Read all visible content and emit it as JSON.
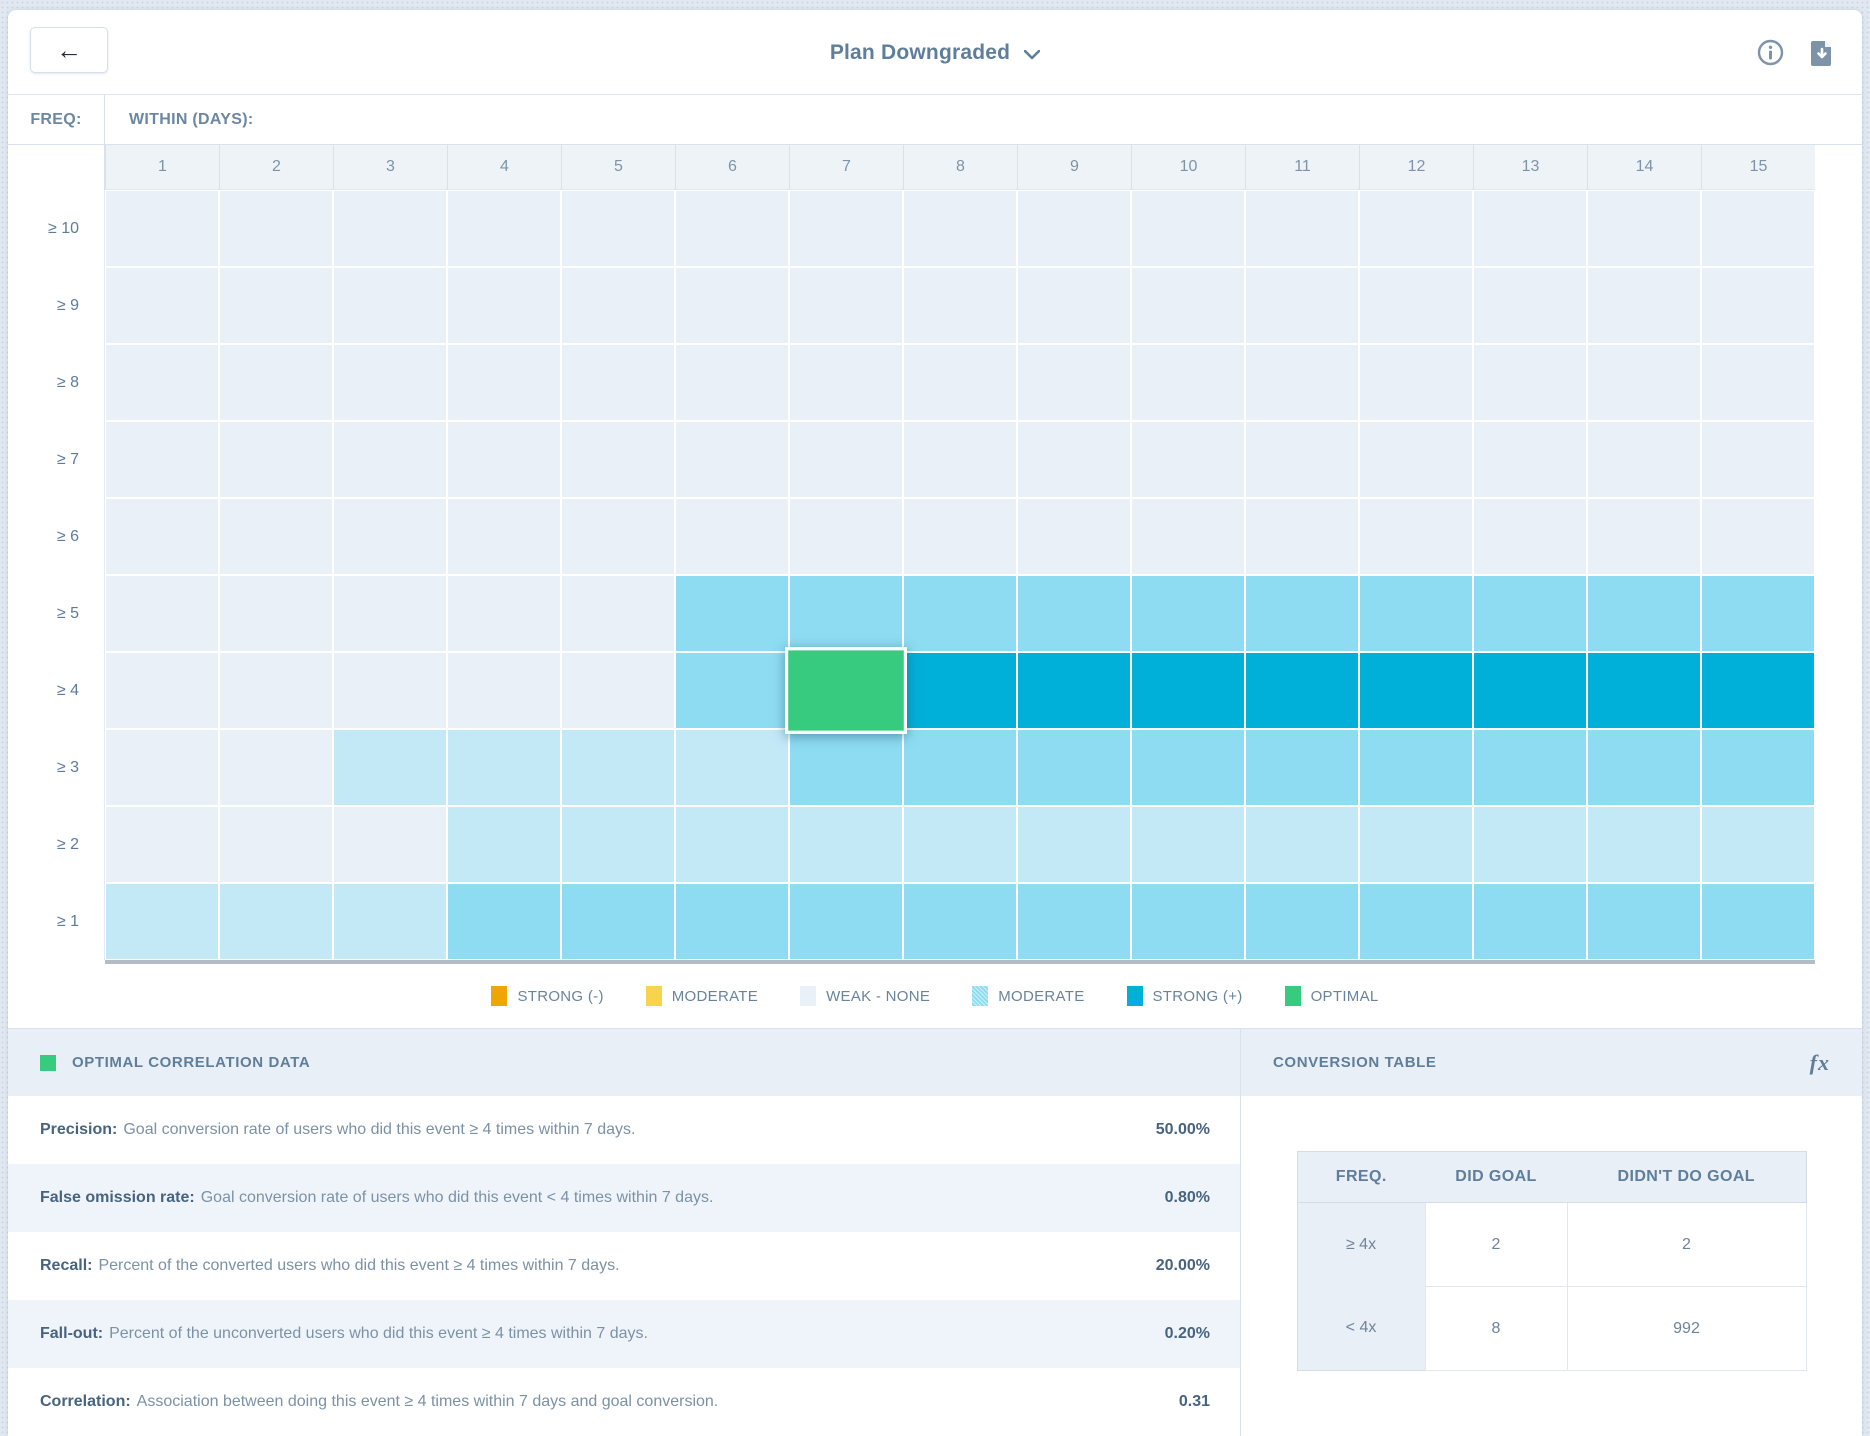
{
  "header": {
    "title": "Plan Downgraded",
    "back_label": "←"
  },
  "chart_data": {
    "type": "heatmap",
    "y_axis_label": "FREQ:",
    "x_axis_label": "WITHIN (DAYS):",
    "columns": [
      "1",
      "2",
      "3",
      "4",
      "5",
      "6",
      "7",
      "8",
      "9",
      "10",
      "11",
      "12",
      "13",
      "14",
      "15"
    ],
    "rows": [
      "≥ 10",
      "≥ 9",
      "≥ 8",
      "≥ 7",
      "≥ 6",
      "≥ 5",
      "≥ 4",
      "≥ 3",
      "≥ 2",
      "≥ 1"
    ],
    "palette": {
      "weak": "#e9f0f7",
      "light": "#c3e9f7",
      "moderate": "#8edcf2",
      "strong": "#00b0d9",
      "optimal": "#36cb7e"
    },
    "cells": [
      [
        "weak",
        "weak",
        "weak",
        "weak",
        "weak",
        "weak",
        "weak",
        "weak",
        "weak",
        "weak",
        "weak",
        "weak",
        "weak",
        "weak",
        "weak"
      ],
      [
        "weak",
        "weak",
        "weak",
        "weak",
        "weak",
        "weak",
        "weak",
        "weak",
        "weak",
        "weak",
        "weak",
        "weak",
        "weak",
        "weak",
        "weak"
      ],
      [
        "weak",
        "weak",
        "weak",
        "weak",
        "weak",
        "weak",
        "weak",
        "weak",
        "weak",
        "weak",
        "weak",
        "weak",
        "weak",
        "weak",
        "weak"
      ],
      [
        "weak",
        "weak",
        "weak",
        "weak",
        "weak",
        "weak",
        "weak",
        "weak",
        "weak",
        "weak",
        "weak",
        "weak",
        "weak",
        "weak",
        "weak"
      ],
      [
        "weak",
        "weak",
        "weak",
        "weak",
        "weak",
        "weak",
        "weak",
        "weak",
        "weak",
        "weak",
        "weak",
        "weak",
        "weak",
        "weak",
        "weak"
      ],
      [
        "weak",
        "weak",
        "weak",
        "weak",
        "weak",
        "moderate",
        "moderate",
        "moderate",
        "moderate",
        "moderate",
        "moderate",
        "moderate",
        "moderate",
        "moderate",
        "moderate"
      ],
      [
        "weak",
        "weak",
        "weak",
        "weak",
        "weak",
        "moderate",
        "optimal",
        "strong",
        "strong",
        "strong",
        "strong",
        "strong",
        "strong",
        "strong",
        "strong"
      ],
      [
        "weak",
        "weak",
        "light",
        "light",
        "light",
        "light",
        "moderate",
        "moderate",
        "moderate",
        "moderate",
        "moderate",
        "moderate",
        "moderate",
        "moderate",
        "moderate"
      ],
      [
        "weak",
        "weak",
        "weak",
        "light",
        "light",
        "light",
        "light",
        "light",
        "light",
        "light",
        "light",
        "light",
        "light",
        "light",
        "light"
      ],
      [
        "light",
        "light",
        "light",
        "moderate",
        "moderate",
        "moderate",
        "moderate",
        "moderate",
        "moderate",
        "moderate",
        "moderate",
        "moderate",
        "moderate",
        "moderate",
        "moderate"
      ]
    ],
    "selected_cell": {
      "row": "≥ 4",
      "column": "7",
      "level": "optimal"
    }
  },
  "legend": [
    {
      "label": "STRONG (-)",
      "color": "#f0a600",
      "hatched": false
    },
    {
      "label": "MODERATE",
      "color": "#f8d44e",
      "hatched": false
    },
    {
      "label": "WEAK - NONE",
      "color": "#e9f0f7",
      "hatched": false
    },
    {
      "label": "MODERATE",
      "color": "#8edcf2",
      "hatched": true
    },
    {
      "label": "STRONG (+)",
      "color": "#00b0d9",
      "hatched": false
    },
    {
      "label": "OPTIMAL",
      "color": "#36cb7e",
      "hatched": false
    }
  ],
  "optimal_panel": {
    "title": "OPTIMAL CORRELATION DATA",
    "swatch_color": "#36cb7e",
    "stats": [
      {
        "label": "Precision:",
        "description": "Goal conversion rate of users who did this event ≥ 4 times within 7 days.",
        "value": "50.00%"
      },
      {
        "label": "False omission rate:",
        "description": "Goal conversion rate of users who did this event < 4 times within 7 days.",
        "value": "0.80%"
      },
      {
        "label": "Recall:",
        "description": "Percent of the converted users who did this event ≥ 4 times within 7 days.",
        "value": "20.00%"
      },
      {
        "label": "Fall-out:",
        "description": "Percent of the unconverted users who did this event ≥ 4 times within 7 days.",
        "value": "0.20%"
      },
      {
        "label": "Correlation:",
        "description": "Association between doing this event ≥ 4 times within 7 days and goal conversion.",
        "value": "0.31"
      }
    ]
  },
  "conversion_panel": {
    "title": "CONVERSION TABLE",
    "fx_label": "fx",
    "table": {
      "headers": [
        "FREQ.",
        "DID GOAL",
        "DIDN'T DO GOAL"
      ],
      "rows": [
        {
          "freq": "≥ 4x",
          "did_goal": "2",
          "didnt_do_goal": "2"
        },
        {
          "freq": "< 4x",
          "did_goal": "8",
          "didnt_do_goal": "992"
        }
      ]
    }
  }
}
